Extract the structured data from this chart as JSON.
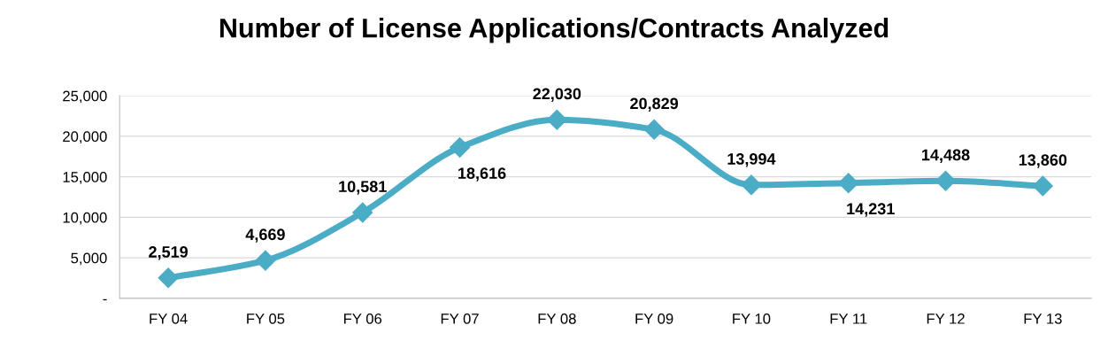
{
  "chart_data": {
    "type": "line",
    "title": "Number of License Applications/Contracts Analyzed",
    "categories": [
      "FY 04",
      "FY 05",
      "FY 06",
      "FY 07",
      "FY 08",
      "FY 09",
      "FY 10",
      "FY 11",
      "FY 12",
      "FY 13"
    ],
    "series": [
      {
        "color": "#4bacc6",
        "values": [
          2519,
          4669,
          10581,
          18616,
          22030,
          20829,
          13994,
          14231,
          14488,
          13860
        ],
        "value_labels": [
          "2,519",
          "4,669",
          "10,581",
          "18,616",
          "22,030",
          "20,829",
          "13,994",
          "14,231",
          "14,488",
          "13,860"
        ]
      }
    ],
    "ylim": [
      0,
      25000
    ],
    "yticks": [
      {
        "value": 0,
        "label": "-"
      },
      {
        "value": 5000,
        "label": "5,000"
      },
      {
        "value": 10000,
        "label": "10,000"
      },
      {
        "value": 15000,
        "label": "15,000"
      },
      {
        "value": 20000,
        "label": "20,000"
      },
      {
        "value": 25000,
        "label": "25,000"
      }
    ],
    "grid": "y",
    "marker": "diamond",
    "line_style": "solid",
    "legend": false
  }
}
